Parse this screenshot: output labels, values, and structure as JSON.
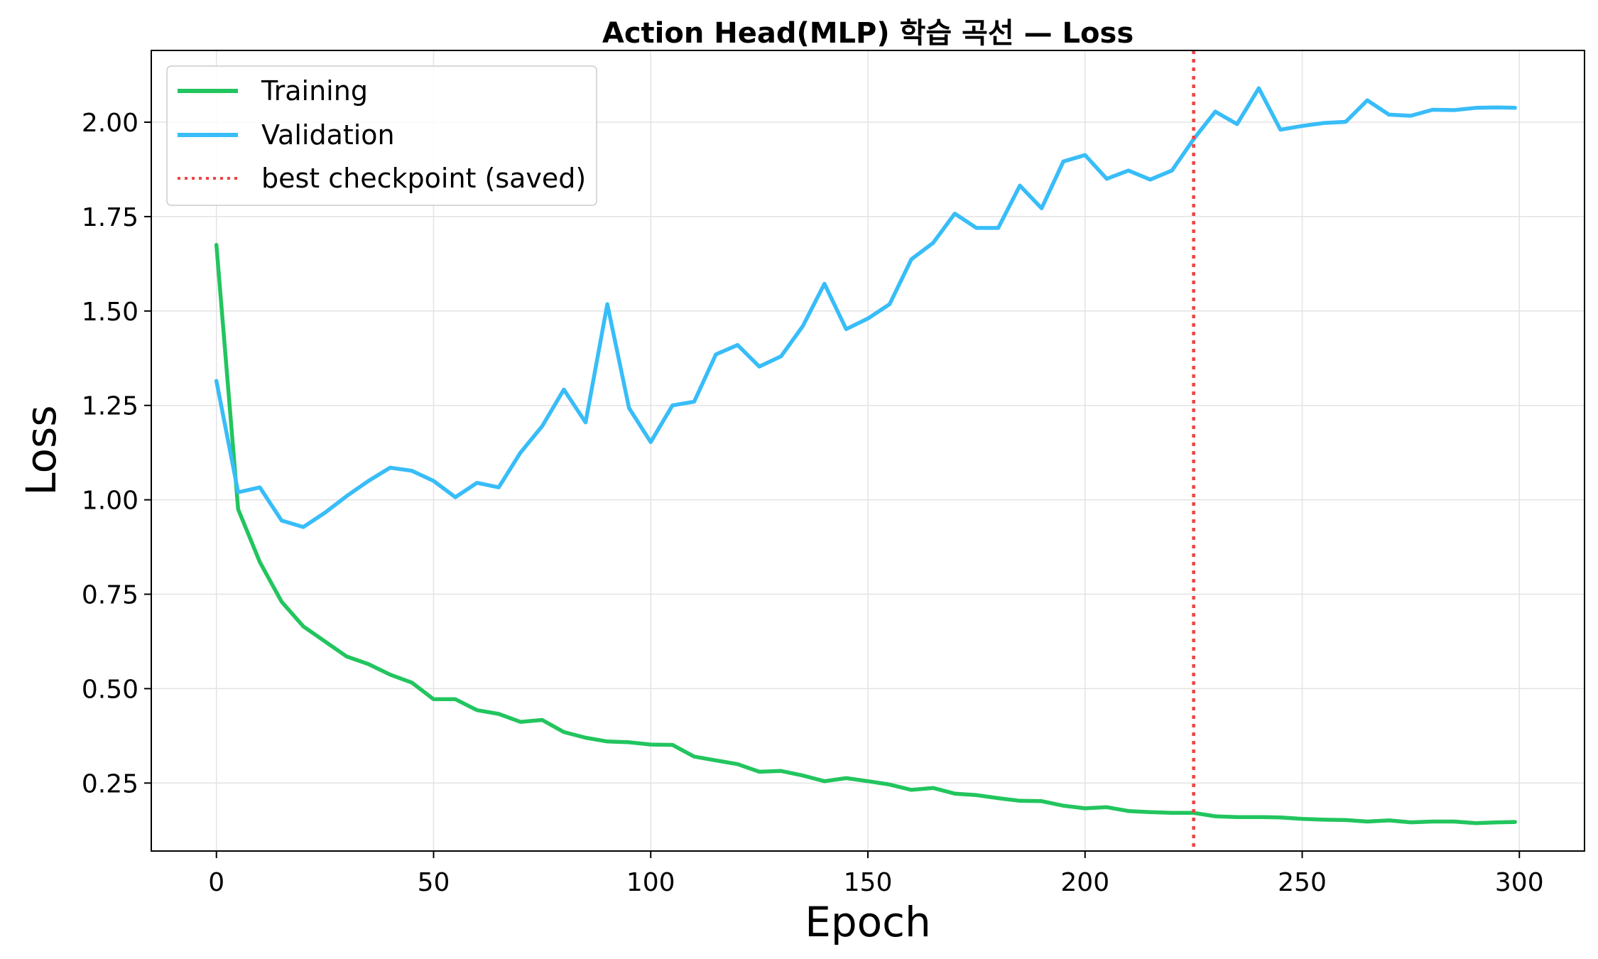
{
  "chart_data": {
    "type": "line",
    "title": "Action Head(MLP) 학습 곡선 — Loss",
    "xlabel": "Epoch",
    "ylabel": "Loss",
    "xlim": [
      -15,
      315
    ],
    "ylim": [
      0.07,
      2.19
    ],
    "xticks": [
      0,
      50,
      100,
      150,
      200,
      250,
      300
    ],
    "xtick_labels": [
      "0",
      "50",
      "100",
      "150",
      "200",
      "250",
      "300"
    ],
    "yticks": [
      0.25,
      0.5,
      0.75,
      1.0,
      1.25,
      1.5,
      1.75,
      2.0
    ],
    "ytick_labels": [
      "0.25",
      "0.50",
      "0.75",
      "1.00",
      "1.25",
      "1.50",
      "1.75",
      "2.00"
    ],
    "grid": true,
    "legend_position": "top-left",
    "x": [
      0,
      5,
      10,
      15,
      20,
      25,
      30,
      35,
      40,
      45,
      50,
      55,
      60,
      65,
      70,
      75,
      80,
      85,
      90,
      95,
      100,
      105,
      110,
      115,
      120,
      125,
      130,
      135,
      140,
      145,
      150,
      155,
      160,
      165,
      170,
      175,
      180,
      185,
      190,
      195,
      200,
      205,
      210,
      215,
      220,
      225,
      230,
      235,
      240,
      245,
      250,
      255,
      260,
      265,
      270,
      275,
      280,
      285,
      290,
      295,
      299
    ],
    "series": [
      {
        "name": "Training",
        "color": "#22c55e",
        "values": [
          1.675,
          0.975,
          0.835,
          0.73,
          0.665,
          0.625,
          0.585,
          0.565,
          0.537,
          0.516,
          0.472,
          0.472,
          0.443,
          0.433,
          0.412,
          0.417,
          0.385,
          0.37,
          0.36,
          0.358,
          0.352,
          0.351,
          0.32,
          0.31,
          0.3,
          0.28,
          0.282,
          0.27,
          0.255,
          0.263,
          0.255,
          0.246,
          0.232,
          0.237,
          0.222,
          0.218,
          0.21,
          0.203,
          0.202,
          0.19,
          0.183,
          0.186,
          0.176,
          0.173,
          0.171,
          0.171,
          0.162,
          0.16,
          0.16,
          0.159,
          0.155,
          0.153,
          0.152,
          0.148,
          0.151,
          0.146,
          0.148,
          0.148,
          0.144,
          0.146,
          0.147
        ]
      },
      {
        "name": "Validation",
        "color": "#38bdf8",
        "values": [
          1.315,
          1.02,
          1.033,
          0.945,
          0.928,
          0.966,
          1.01,
          1.05,
          1.085,
          1.077,
          1.05,
          1.007,
          1.045,
          1.033,
          1.125,
          1.195,
          1.292,
          1.205,
          1.518,
          1.243,
          1.153,
          1.25,
          1.26,
          1.385,
          1.41,
          1.353,
          1.38,
          1.46,
          1.572,
          1.452,
          1.48,
          1.518,
          1.637,
          1.68,
          1.758,
          1.72,
          1.72,
          1.832,
          1.772,
          1.896,
          1.913,
          1.85,
          1.872,
          1.848,
          1.872,
          1.955,
          2.028,
          1.995,
          2.09,
          1.98,
          1.99,
          1.998,
          2.001,
          2.058,
          2.02,
          2.017,
          2.033,
          2.032,
          2.038,
          2.039,
          2.038
        ]
      }
    ],
    "annotations": [
      {
        "type": "vline",
        "x": 225,
        "label": "best checkpoint (saved)",
        "color": "#ef4444",
        "style": "dotted"
      }
    ]
  }
}
